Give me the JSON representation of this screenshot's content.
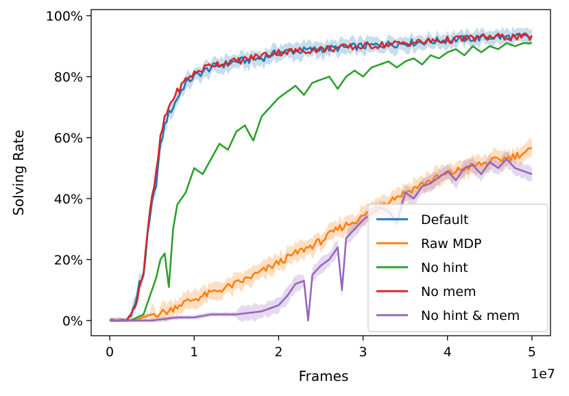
{
  "chart_data": {
    "type": "line",
    "xlabel": "Frames",
    "ylabel": "Solving Rate",
    "x_offset_label": "1e7",
    "xlim": [
      -0.22,
      5.22
    ],
    "ylim": [
      -0.05,
      1.02
    ],
    "xticks": [
      0,
      1,
      2,
      3,
      4,
      5
    ],
    "xtick_labels": [
      "0",
      "1",
      "2",
      "3",
      "4",
      "5"
    ],
    "yticks": [
      0,
      0.2,
      0.4,
      0.6,
      0.8,
      1.0
    ],
    "ytick_labels": [
      "0%",
      "20%",
      "40%",
      "60%",
      "80%",
      "100%"
    ],
    "grid": false,
    "legend_position": "bottom-right",
    "series": [
      {
        "name": "Default",
        "color": "#1f77b4",
        "x": [
          0.0,
          0.2,
          0.3,
          0.35,
          0.4,
          0.45,
          0.5,
          0.55,
          0.6,
          0.65,
          0.7,
          0.75,
          0.8,
          0.9,
          1.0,
          1.2,
          1.5,
          1.8,
          2.0,
          2.5,
          3.0,
          3.5,
          4.0,
          4.5,
          5.0
        ],
        "y": [
          0.0,
          0.0,
          0.05,
          0.12,
          0.15,
          0.28,
          0.38,
          0.45,
          0.57,
          0.64,
          0.68,
          0.7,
          0.73,
          0.78,
          0.8,
          0.83,
          0.85,
          0.86,
          0.88,
          0.89,
          0.9,
          0.91,
          0.92,
          0.93,
          0.93
        ]
      },
      {
        "name": "Raw MDP",
        "color": "#ff7f0e",
        "x": [
          0.0,
          0.3,
          0.5,
          0.7,
          0.8,
          1.0,
          1.2,
          1.5,
          1.8,
          2.0,
          2.2,
          2.5,
          2.7,
          3.0,
          3.2,
          3.5,
          3.8,
          4.0,
          4.2,
          4.5,
          4.8,
          5.0
        ],
        "y": [
          0.0,
          0.0,
          0.02,
          0.03,
          0.05,
          0.07,
          0.09,
          0.12,
          0.16,
          0.19,
          0.22,
          0.26,
          0.3,
          0.34,
          0.38,
          0.42,
          0.46,
          0.48,
          0.5,
          0.52,
          0.54,
          0.56
        ]
      },
      {
        "name": "No hint",
        "color": "#2ca02c",
        "x": [
          0.0,
          0.25,
          0.4,
          0.5,
          0.55,
          0.6,
          0.65,
          0.7,
          0.75,
          0.8,
          0.9,
          1.0,
          1.1,
          1.2,
          1.3,
          1.4,
          1.5,
          1.6,
          1.7,
          1.8,
          1.9,
          2.0,
          2.1,
          2.2,
          2.3,
          2.4,
          2.5,
          2.6,
          2.7,
          2.8,
          2.9,
          3.0,
          3.1,
          3.2,
          3.3,
          3.4,
          3.5,
          3.6,
          3.7,
          3.8,
          3.9,
          4.0,
          4.1,
          4.2,
          4.3,
          4.4,
          4.5,
          4.6,
          4.7,
          4.8,
          4.9,
          5.0
        ],
        "y": [
          0.0,
          0.0,
          0.02,
          0.1,
          0.14,
          0.2,
          0.22,
          0.11,
          0.3,
          0.38,
          0.42,
          0.5,
          0.48,
          0.53,
          0.58,
          0.56,
          0.62,
          0.64,
          0.59,
          0.67,
          0.7,
          0.73,
          0.75,
          0.77,
          0.74,
          0.78,
          0.79,
          0.8,
          0.76,
          0.8,
          0.82,
          0.8,
          0.83,
          0.84,
          0.85,
          0.83,
          0.85,
          0.86,
          0.84,
          0.87,
          0.86,
          0.88,
          0.89,
          0.87,
          0.9,
          0.88,
          0.9,
          0.89,
          0.91,
          0.9,
          0.91,
          0.91
        ]
      },
      {
        "name": "No mem",
        "color": "#d62728",
        "x": [
          0.0,
          0.2,
          0.3,
          0.35,
          0.4,
          0.45,
          0.5,
          0.55,
          0.6,
          0.65,
          0.7,
          0.75,
          0.8,
          0.9,
          1.0,
          1.2,
          1.5,
          1.8,
          2.0,
          2.5,
          3.0,
          3.5,
          4.0,
          4.5,
          5.0
        ],
        "y": [
          0.0,
          0.0,
          0.04,
          0.11,
          0.16,
          0.3,
          0.4,
          0.48,
          0.6,
          0.66,
          0.7,
          0.73,
          0.75,
          0.79,
          0.81,
          0.84,
          0.85,
          0.87,
          0.88,
          0.89,
          0.9,
          0.91,
          0.92,
          0.93,
          0.93
        ]
      },
      {
        "name": "No hint & mem",
        "color": "#9467bd",
        "x": [
          0.0,
          0.5,
          0.8,
          1.0,
          1.2,
          1.5,
          1.8,
          2.0,
          2.1,
          2.2,
          2.3,
          2.35,
          2.4,
          2.5,
          2.6,
          2.7,
          2.75,
          2.8,
          2.9,
          3.0,
          3.1,
          3.2,
          3.3,
          3.4,
          3.5,
          3.6,
          3.7,
          3.8,
          3.9,
          4.0,
          4.1,
          4.2,
          4.3,
          4.4,
          4.5,
          4.6,
          4.7,
          4.8,
          4.9,
          5.0
        ],
        "y": [
          0.0,
          0.0,
          0.01,
          0.01,
          0.02,
          0.02,
          0.03,
          0.05,
          0.08,
          0.12,
          0.13,
          0.0,
          0.15,
          0.18,
          0.2,
          0.24,
          0.1,
          0.27,
          0.3,
          0.33,
          0.35,
          0.37,
          0.36,
          0.32,
          0.42,
          0.4,
          0.44,
          0.45,
          0.47,
          0.49,
          0.46,
          0.5,
          0.51,
          0.48,
          0.52,
          0.5,
          0.53,
          0.5,
          0.49,
          0.48
        ]
      }
    ]
  }
}
